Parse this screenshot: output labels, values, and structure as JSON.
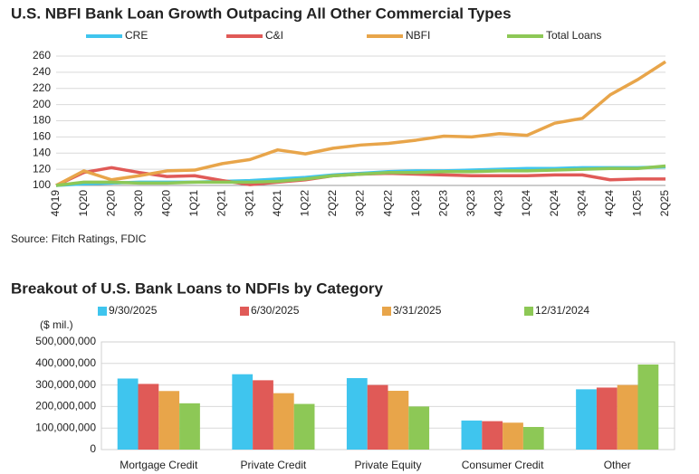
{
  "chart_data": [
    {
      "type": "line",
      "title": "U.S. NBFI Bank Loan Growth Outpacing All Other Commercial Types",
      "source": "Source: Fitch Ratings, FDIC",
      "categories": [
        "4Q19",
        "1Q20",
        "2Q20",
        "3Q20",
        "4Q20",
        "1Q21",
        "2Q21",
        "3Q21",
        "4Q21",
        "1Q22",
        "2Q22",
        "3Q22",
        "4Q22",
        "1Q23",
        "2Q23",
        "3Q23",
        "4Q23",
        "1Q24",
        "2Q24",
        "3Q24",
        "4Q24",
        "1Q25",
        "2Q25"
      ],
      "series": [
        {
          "name": "CRE",
          "color": "#3fc5ee",
          "values": [
            100,
            102,
            103,
            104,
            104,
            104,
            105,
            106,
            108,
            110,
            113,
            115,
            117,
            118,
            118,
            119,
            120,
            121,
            121,
            122,
            122,
            122,
            123
          ]
        },
        {
          "name": "C&I",
          "color": "#e05a57",
          "values": [
            100,
            116,
            122,
            116,
            111,
            112,
            106,
            101,
            104,
            107,
            112,
            114,
            115,
            114,
            113,
            112,
            112,
            112,
            113,
            113,
            107,
            108,
            108
          ]
        },
        {
          "name": "NBFI",
          "color": "#e8a54a",
          "values": [
            100,
            118,
            107,
            112,
            118,
            119,
            127,
            132,
            144,
            139,
            146,
            150,
            152,
            156,
            161,
            160,
            164,
            162,
            177,
            183,
            212,
            231,
            253
          ]
        },
        {
          "name": "Total Loans",
          "color": "#8dc856",
          "values": [
            100,
            104,
            104,
            103,
            103,
            104,
            104,
            104,
            105,
            108,
            112,
            114,
            116,
            116,
            117,
            117,
            118,
            118,
            119,
            120,
            121,
            121,
            124
          ]
        }
      ],
      "ylim": [
        100,
        260
      ],
      "yticks": [
        100,
        120,
        140,
        160,
        180,
        200,
        220,
        240,
        260
      ],
      "grid": true
    },
    {
      "type": "bar",
      "title": "Breakout of U.S. Bank Loans to NDFIs by Category",
      "y_label": "($ mil.)",
      "categories": [
        "Mortgage Credit",
        "Private Credit",
        "Private Equity",
        "Consumer Credit",
        "Other"
      ],
      "series": [
        {
          "name": "9/30/2025",
          "color": "#3fc5ee",
          "values": [
            330000000,
            350000000,
            332000000,
            135000000,
            280000000
          ]
        },
        {
          "name": "6/30/2025",
          "color": "#e05a57",
          "values": [
            305000000,
            322000000,
            300000000,
            132000000,
            288000000
          ]
        },
        {
          "name": "3/31/2025",
          "color": "#e8a54a",
          "values": [
            272000000,
            262000000,
            273000000,
            125000000,
            300000000
          ]
        },
        {
          "name": "12/31/2024",
          "color": "#8dc856",
          "values": [
            215000000,
            212000000,
            200000000,
            105000000,
            395000000
          ]
        }
      ],
      "ylim": [
        0,
        500000000
      ],
      "yticks": [
        0,
        {
          "value": 100000000,
          "label": "100,000,000"
        },
        {
          "value": 200000000,
          "label": "200,000,000"
        },
        {
          "value": 300000000,
          "label": "300,000,000"
        },
        {
          "value": 400000000,
          "label": "400,000,000"
        },
        {
          "value": 500000000,
          "label": "500,000,000"
        }
      ],
      "grid": true
    }
  ]
}
